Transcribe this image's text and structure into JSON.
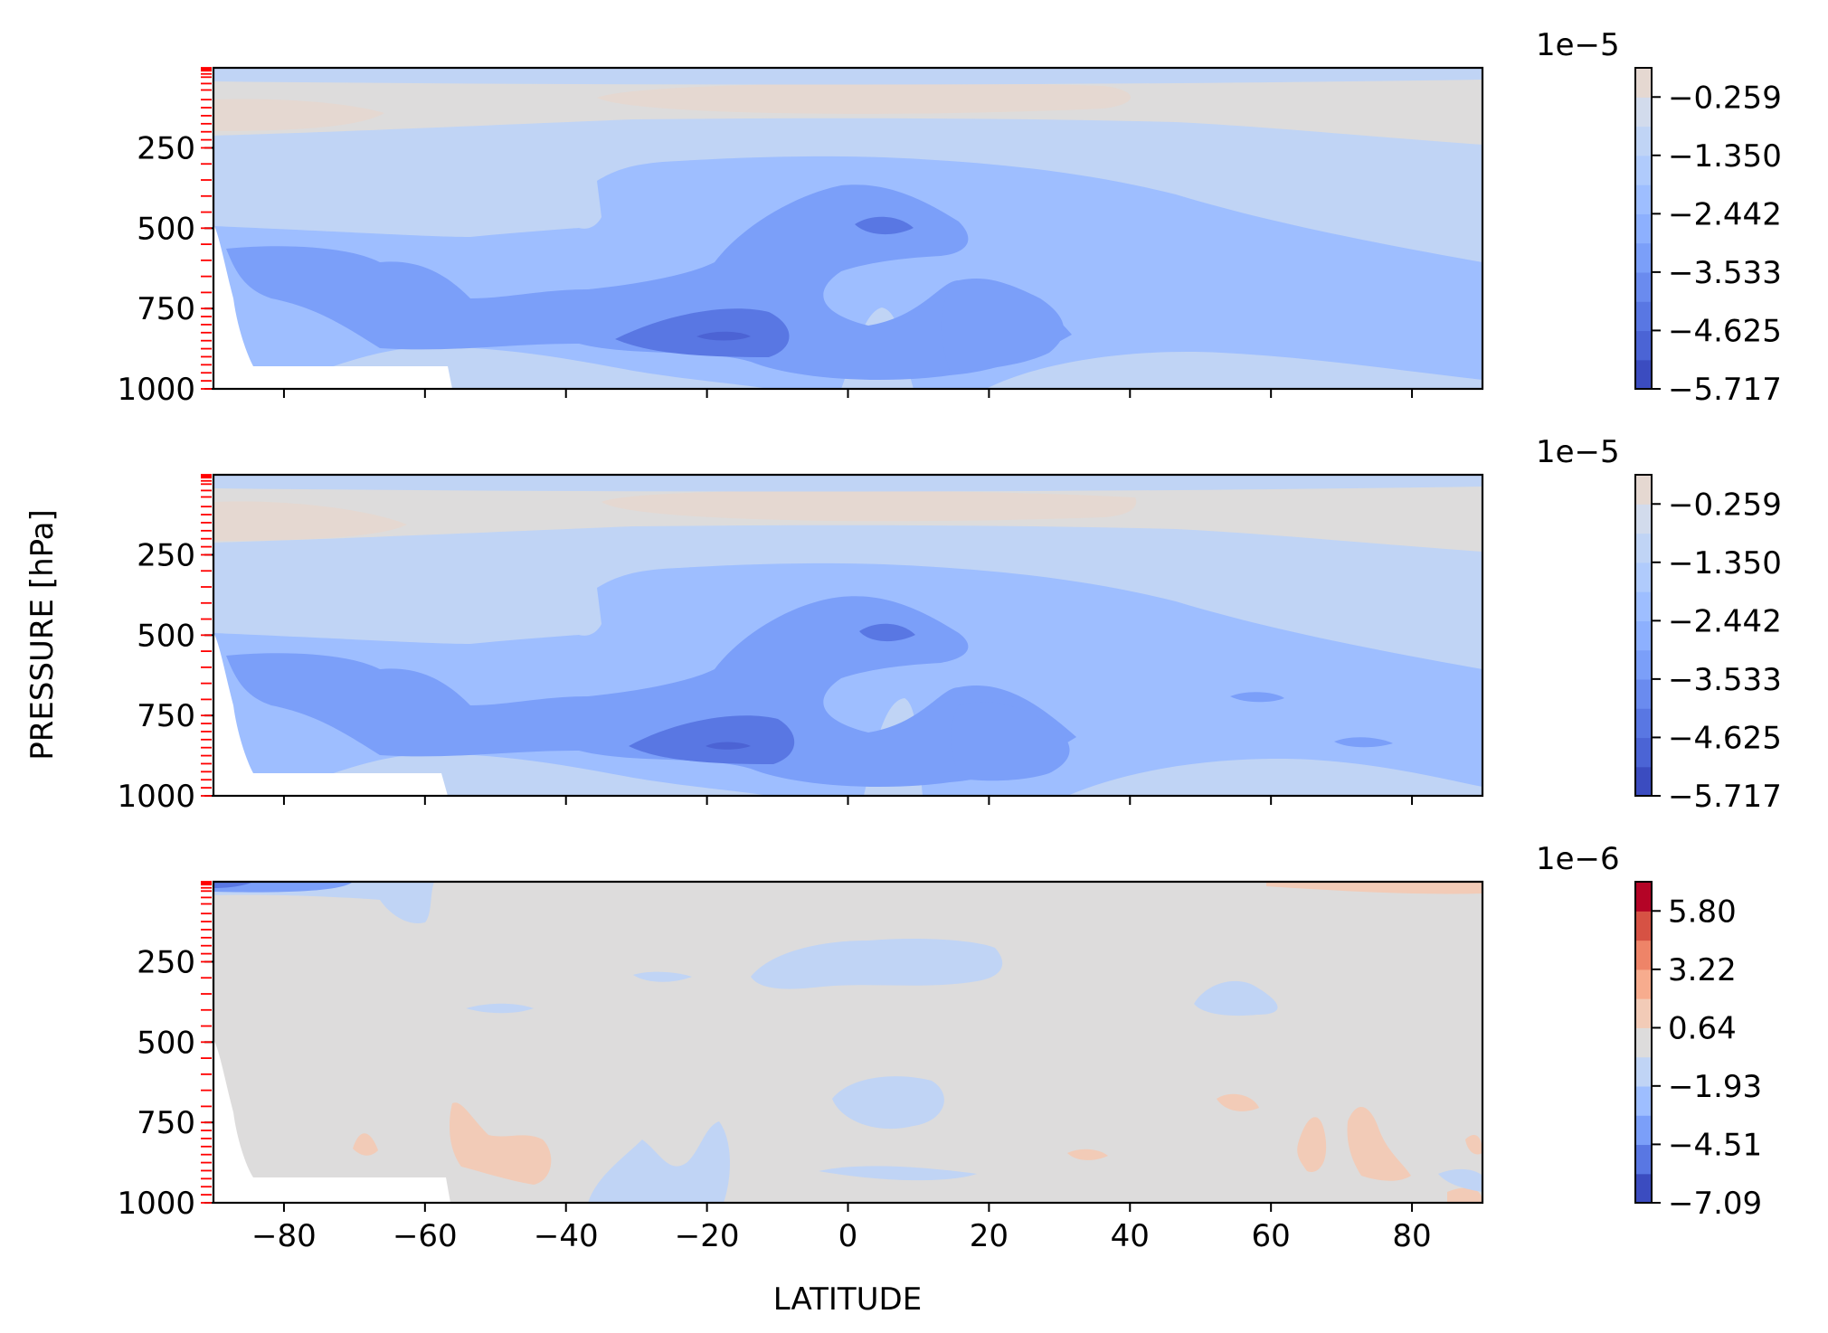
{
  "figure": {
    "ylabel": "PRESSURE [hPa]",
    "xlabel": "LATITUDE"
  },
  "colors": {
    "neg_ramp": [
      "#3b4cc0",
      "#5977e3",
      "#7b9ff9",
      "#9ebeff",
      "#c0d4f5",
      "#dddcdc"
    ],
    "pos_ramp": [
      "#dddcdc",
      "#f2cbb7",
      "#f7ac8e",
      "#ee8468",
      "#d65244",
      "#b40426"
    ],
    "missing": "#ffffff",
    "level_tick": "#ff0000"
  },
  "chart_data": [
    {
      "type": "contour",
      "panel": "top",
      "x_ticks": [
        "−80",
        "−60",
        "−40",
        "−20",
        "0",
        "20",
        "40",
        "60",
        "80"
      ],
      "x_tick_values": [
        -80,
        -60,
        -40,
        -20,
        0,
        20,
        40,
        60,
        80
      ],
      "xlim": [
        -90,
        90
      ],
      "y_ticks": [
        "250",
        "500",
        "750",
        "1000"
      ],
      "y_tick_values": [
        250,
        500,
        750,
        1000
      ],
      "ylim": [
        1000,
        1
      ],
      "pressure_levels": [
        1,
        2,
        3,
        5,
        7,
        10,
        20,
        30,
        50,
        70,
        100,
        125,
        150,
        175,
        200,
        225,
        250,
        300,
        350,
        400,
        450,
        500,
        550,
        600,
        650,
        700,
        750,
        775,
        800,
        825,
        850,
        875,
        900,
        925,
        950,
        975,
        1000
      ],
      "colorbar": {
        "exponent": "1e−5",
        "tick_labels": [
          "−0.259",
          "−1.350",
          "−2.442",
          "−3.533",
          "−4.625",
          "−5.717"
        ],
        "tick_values": [
          -0.259,
          -1.35,
          -2.442,
          -3.533,
          -4.625,
          -5.717
        ],
        "range": [
          -5.717,
          0.287
        ]
      }
    },
    {
      "type": "contour",
      "panel": "middle",
      "x_ticks": [
        "−80",
        "−60",
        "−40",
        "−20",
        "0",
        "20",
        "40",
        "60",
        "80"
      ],
      "x_tick_values": [
        -80,
        -60,
        -40,
        -20,
        0,
        20,
        40,
        60,
        80
      ],
      "xlim": [
        -90,
        90
      ],
      "y_ticks": [
        "250",
        "500",
        "750",
        "1000"
      ],
      "y_tick_values": [
        250,
        500,
        750,
        1000
      ],
      "ylim": [
        1000,
        1
      ],
      "colorbar": {
        "exponent": "1e−5",
        "tick_labels": [
          "−0.259",
          "−1.350",
          "−2.442",
          "−3.533",
          "−4.625",
          "−5.717"
        ],
        "tick_values": [
          -0.259,
          -1.35,
          -2.442,
          -3.533,
          -4.625,
          -5.717
        ],
        "range": [
          -5.717,
          0.287
        ]
      }
    },
    {
      "type": "contour",
      "panel": "bottom",
      "x_ticks": [
        "−80",
        "−60",
        "−40",
        "−20",
        "0",
        "20",
        "40",
        "60",
        "80"
      ],
      "x_tick_values": [
        -80,
        -60,
        -40,
        -20,
        0,
        20,
        40,
        60,
        80
      ],
      "xlim": [
        -90,
        90
      ],
      "y_ticks": [
        "250",
        "500",
        "750",
        "1000"
      ],
      "y_tick_values": [
        250,
        500,
        750,
        1000
      ],
      "ylim": [
        1000,
        1
      ],
      "colorbar": {
        "exponent": "1e−6",
        "tick_labels": [
          "5.80",
          "3.22",
          "0.64",
          "−1.93",
          "−4.51",
          "−7.09"
        ],
        "tick_values": [
          5.8,
          3.22,
          0.64,
          -1.93,
          -4.51,
          -7.09
        ],
        "range": [
          -7.09,
          7.09
        ]
      }
    }
  ]
}
